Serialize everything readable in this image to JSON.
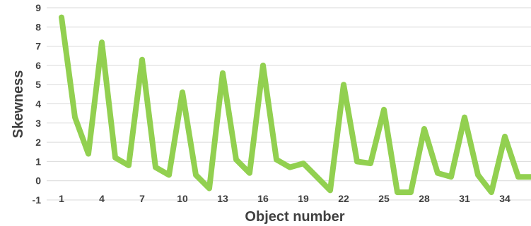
{
  "chart_data": {
    "type": "line",
    "xlabel": "Object number",
    "ylabel": "Skewness",
    "ylim": [
      -1,
      9
    ],
    "y_ticks": [
      "-1",
      "0",
      "1",
      "2",
      "3",
      "4",
      "5",
      "6",
      "7",
      "8",
      "9"
    ],
    "x_ticks": [
      "1",
      "4",
      "7",
      "10",
      "13",
      "16",
      "19",
      "22",
      "25",
      "28",
      "31",
      "34"
    ],
    "grid": true,
    "legend": "none",
    "line_color": "#92d050",
    "series": [
      {
        "x": [
          1,
          2,
          3,
          4,
          5,
          6,
          7,
          8,
          9,
          10,
          11,
          12,
          13,
          14,
          15,
          16,
          17,
          18,
          19,
          20,
          21,
          22,
          23,
          24,
          25,
          26,
          27,
          28,
          29,
          30,
          31,
          32,
          33,
          34,
          35,
          36
        ],
        "values": [
          8.5,
          3.3,
          1.4,
          7.2,
          1.2,
          0.8,
          6.3,
          0.7,
          0.3,
          4.6,
          0.3,
          -0.4,
          5.6,
          1.1,
          0.4,
          6.0,
          1.1,
          0.7,
          0.9,
          0.2,
          -0.5,
          5.0,
          1.0,
          0.9,
          3.7,
          -0.6,
          -0.6,
          2.7,
          0.4,
          0.2,
          3.3,
          0.3,
          -0.6,
          2.3,
          0.2,
          0.2
        ]
      }
    ]
  }
}
